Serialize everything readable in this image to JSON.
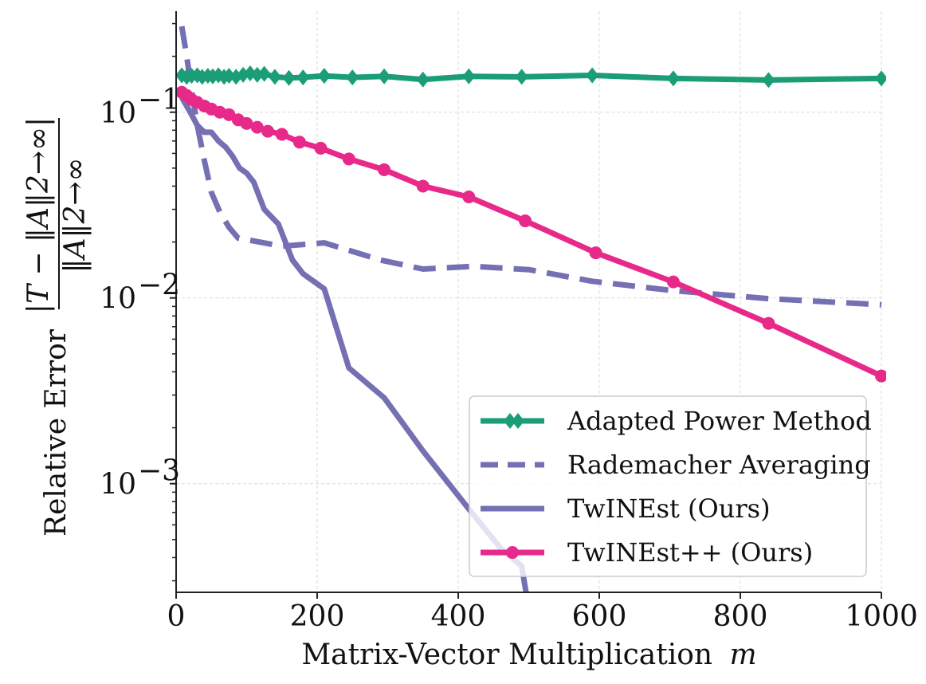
{
  "chart_data": {
    "type": "line",
    "title": "",
    "xlabel": "Matrix-Vector Multiplication",
    "xlabel_var": "m",
    "ylabel": "Relative Error",
    "ylabel_numerator": "|T − ‖A‖2→∞|",
    "ylabel_denominator": "‖A‖2→∞",
    "xscale": "linear",
    "yscale": "log",
    "xlim": [
      0,
      1000
    ],
    "ylim": [
      0.00026,
      0.35
    ],
    "x_ticks": [
      0,
      200,
      400,
      600,
      800,
      1000
    ],
    "x_tick_labels": [
      "0",
      "200",
      "400",
      "600",
      "800",
      "1000"
    ],
    "y_ticks": [
      0.001,
      0.01,
      0.1
    ],
    "y_tick_labels": [
      "10",
      "10",
      "10"
    ],
    "y_tick_exponents": [
      "−3",
      "−2",
      "−1"
    ],
    "grid": true,
    "legend_position": "bottom-right",
    "series": [
      {
        "name": "Adapted Power Method",
        "color": "#1b9e77",
        "style": "solid",
        "marker": "diamond",
        "x": [
          8,
          15,
          22,
          30,
          37,
          45,
          52,
          60,
          68,
          75,
          85,
          95,
          105,
          115,
          125,
          140,
          160,
          180,
          210,
          250,
          295,
          350,
          415,
          490,
          590,
          705,
          840,
          1000
        ],
        "y": [
          0.158,
          0.155,
          0.157,
          0.158,
          0.155,
          0.157,
          0.156,
          0.158,
          0.155,
          0.157,
          0.155,
          0.159,
          0.162,
          0.159,
          0.161,
          0.155,
          0.153,
          0.154,
          0.157,
          0.154,
          0.156,
          0.15,
          0.156,
          0.155,
          0.158,
          0.152,
          0.149,
          0.152
        ]
      },
      {
        "name": "Rademacher Averaging",
        "color": "#7570b3",
        "style": "dashed",
        "marker": "none",
        "x": [
          8,
          15,
          22,
          30,
          40,
          50,
          62,
          75,
          88,
          150,
          210,
          290,
          350,
          420,
          500,
          590,
          700,
          840,
          1000
        ],
        "y": [
          0.29,
          0.2,
          0.13,
          0.085,
          0.055,
          0.037,
          0.029,
          0.024,
          0.021,
          0.019,
          0.0198,
          0.016,
          0.0143,
          0.0148,
          0.0142,
          0.0123,
          0.011,
          0.0099,
          0.0092
        ]
      },
      {
        "name": "TwINEst (Ours)",
        "color": "#7570b3",
        "style": "solid",
        "marker": "none",
        "x": [
          8,
          20,
          30,
          40,
          50,
          60,
          70,
          80,
          90,
          100,
          110,
          125,
          145,
          165,
          180,
          210,
          245,
          295,
          350,
          415,
          460,
          490,
          497
        ],
        "y": [
          0.12,
          0.1,
          0.085,
          0.078,
          0.078,
          0.07,
          0.065,
          0.058,
          0.05,
          0.047,
          0.042,
          0.03,
          0.025,
          0.016,
          0.0135,
          0.0112,
          0.0042,
          0.0029,
          0.0015,
          0.00073,
          0.00045,
          0.00036,
          0.00025
        ]
      },
      {
        "name": "TwINEst++ (Ours)",
        "color": "#e7298a",
        "style": "solid",
        "marker": "circle",
        "x": [
          8,
          15,
          22,
          30,
          40,
          50,
          62,
          75,
          88,
          100,
          115,
          130,
          150,
          175,
          205,
          245,
          295,
          350,
          415,
          495,
          595,
          705,
          840,
          1000
        ],
        "y": [
          0.128,
          0.123,
          0.117,
          0.113,
          0.108,
          0.104,
          0.1,
          0.097,
          0.091,
          0.087,
          0.083,
          0.079,
          0.076,
          0.069,
          0.064,
          0.056,
          0.049,
          0.04,
          0.035,
          0.026,
          0.0175,
          0.0122,
          0.0073,
          0.0038
        ]
      }
    ]
  }
}
